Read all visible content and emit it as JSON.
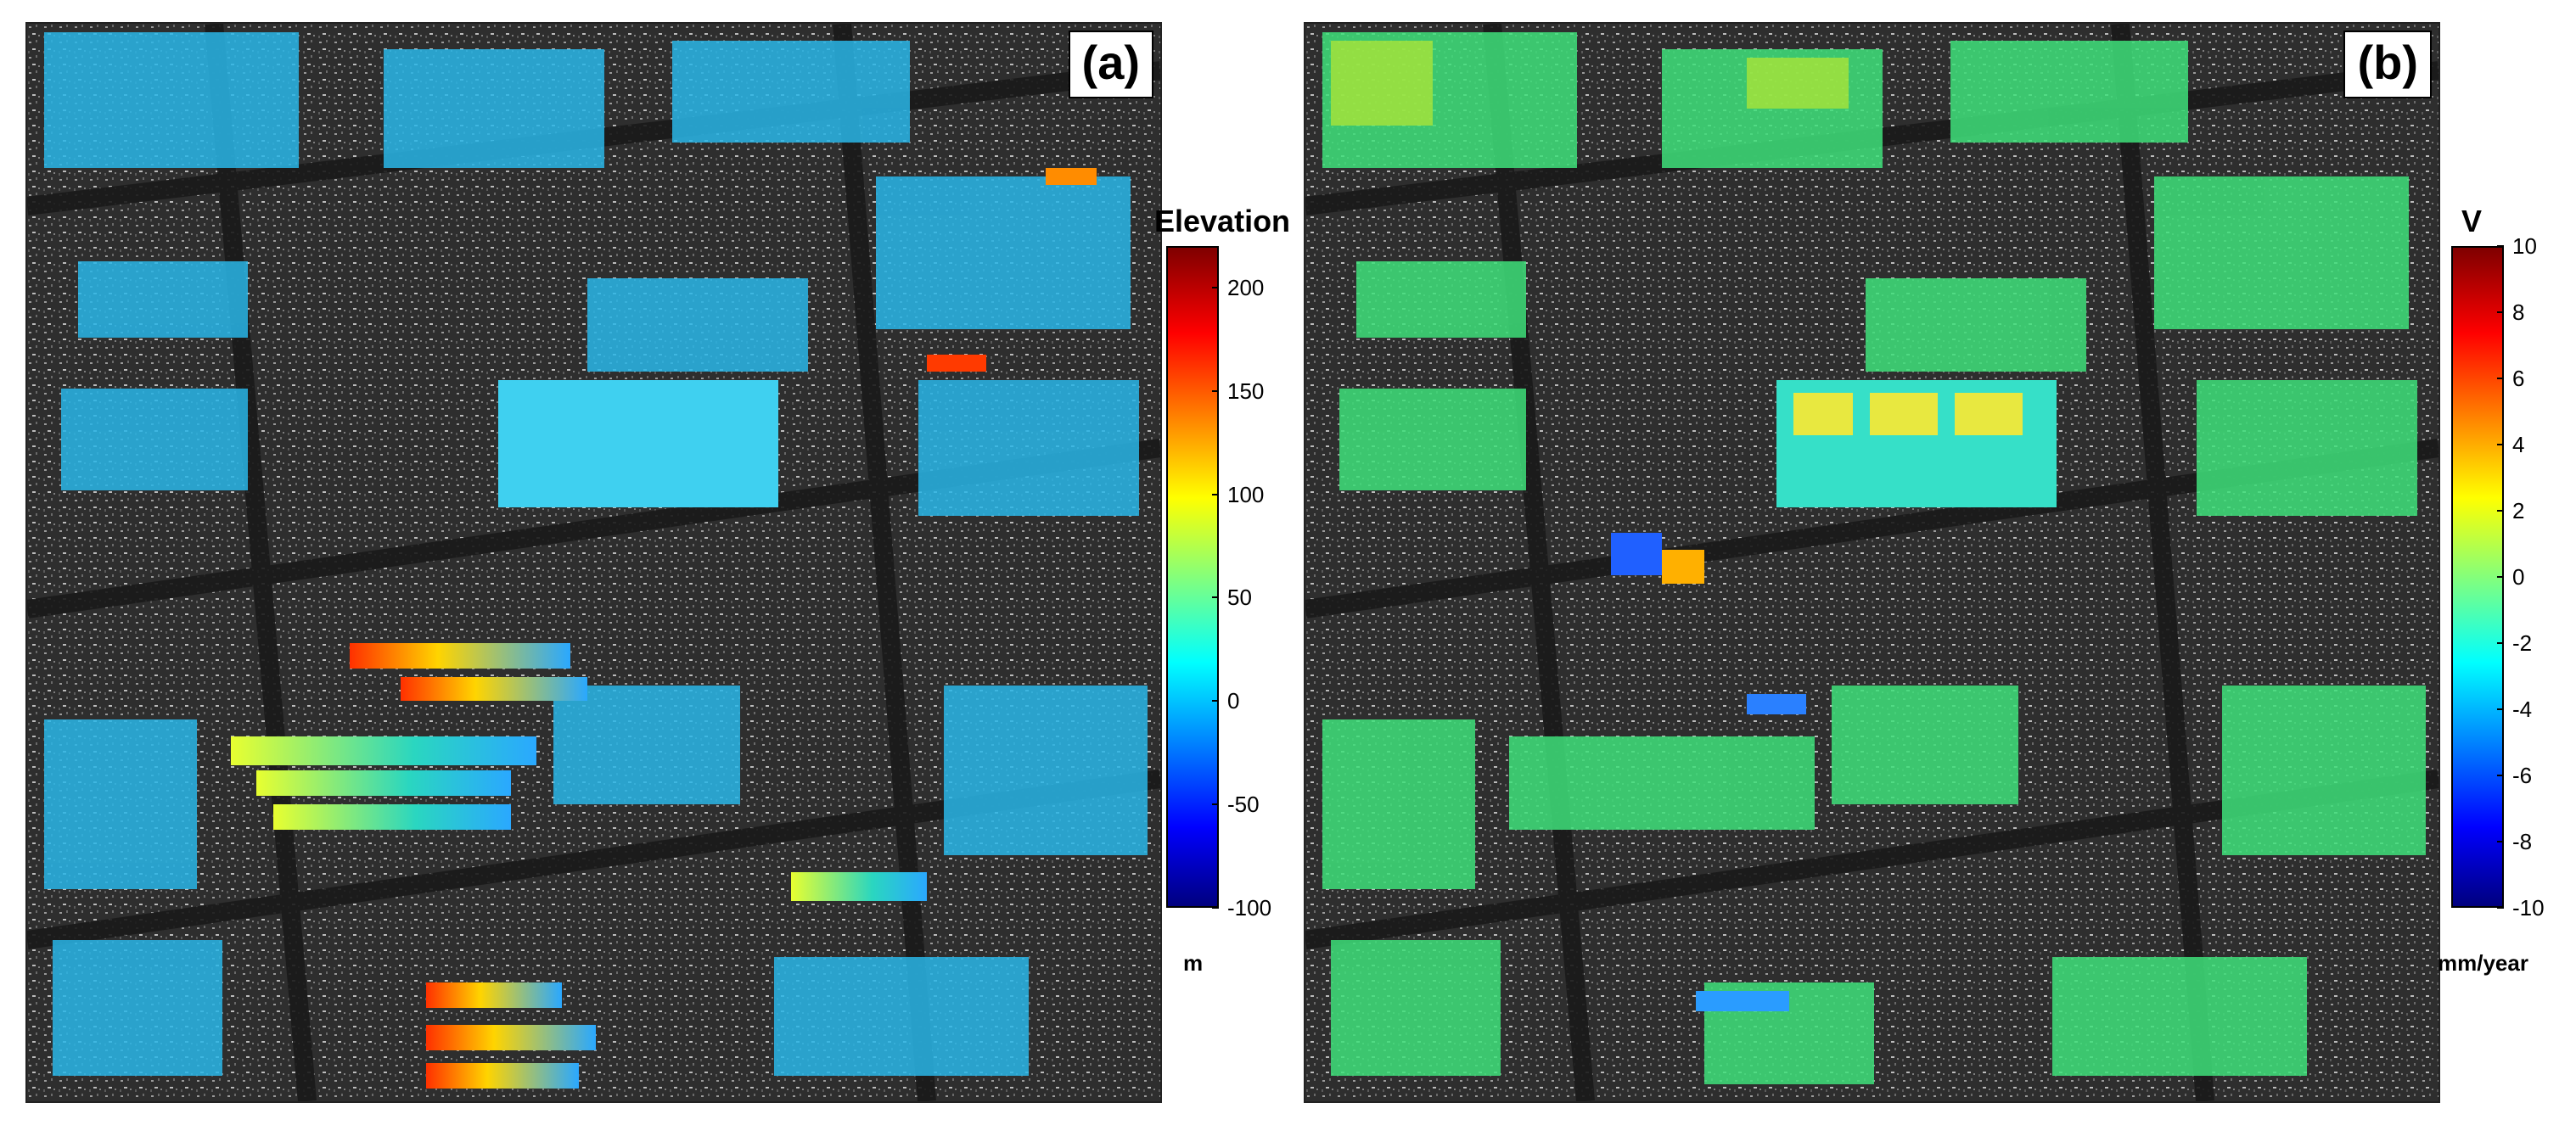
{
  "panels": [
    {
      "label": "(a)",
      "colorbar": {
        "title": "Elevation",
        "unit": "m",
        "min": -100,
        "max": 220,
        "ticks": [
          "200",
          "150",
          "100",
          "50",
          "0",
          "-50",
          "-100"
        ],
        "tick_values": [
          200,
          150,
          100,
          50,
          0,
          -50,
          -100
        ],
        "colormap": "jet"
      }
    },
    {
      "label": "(b)",
      "colorbar": {
        "title": "V",
        "unit": "mm/year",
        "min": -10,
        "max": 10,
        "ticks": [
          "10",
          "8",
          "6",
          "4",
          "2",
          "0",
          "-2",
          "-4",
          "-6",
          "-8",
          "-10"
        ],
        "tick_values": [
          10,
          8,
          6,
          4,
          2,
          0,
          -2,
          -4,
          -6,
          -8,
          -10
        ],
        "colormap": "jet"
      }
    }
  ],
  "colors": {
    "jet_low": "#00007f",
    "jet_blue": "#0000ff",
    "jet_cyan": "#00ffff",
    "jet_yellow": "#ffff00",
    "jet_red": "#ff0000",
    "jet_high": "#7f0000",
    "background_sar": "#2c2c2c"
  }
}
